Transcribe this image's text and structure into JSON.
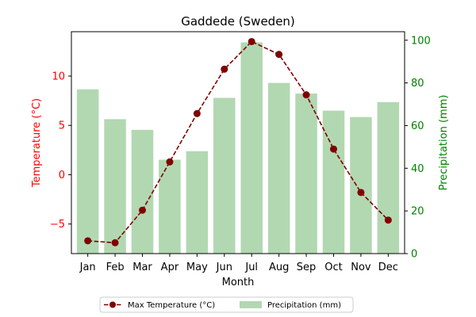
{
  "chart_data": {
    "type": "bar+line",
    "title": "Gaddede (Sweden)",
    "xlabel": "Month",
    "y_left_label": "Temperature (°C)",
    "y_right_label": "Precipitation (mm)",
    "categories": [
      "Jan",
      "Feb",
      "Mar",
      "Apr",
      "May",
      "Jun",
      "Jul",
      "Aug",
      "Sep",
      "Oct",
      "Nov",
      "Dec"
    ],
    "y_left_lim": [
      -8,
      14.5
    ],
    "y_left_ticks": [
      -5,
      0,
      5,
      10
    ],
    "y_right_lim": [
      0,
      104
    ],
    "y_right_ticks": [
      0,
      20,
      40,
      60,
      80,
      100
    ],
    "grid": false,
    "legend_position": "bottom-center",
    "series": [
      {
        "name": "Max Temperature (°C)",
        "type": "line",
        "axis": "left",
        "color": "#800000",
        "line_style": "dashed",
        "marker": "circle",
        "values": [
          -6.7,
          -6.9,
          -3.6,
          1.3,
          6.2,
          10.7,
          13.5,
          12.2,
          8.1,
          2.6,
          -1.8,
          -4.6
        ]
      },
      {
        "name": "Precipitation (mm)",
        "type": "bar",
        "axis": "right",
        "color": "#b2d8b2",
        "values": [
          77,
          63,
          58,
          44,
          48,
          73,
          99,
          80,
          75,
          67,
          64,
          71
        ]
      }
    ],
    "left_axis_color": "#ff0000",
    "right_axis_color": "#008000"
  }
}
